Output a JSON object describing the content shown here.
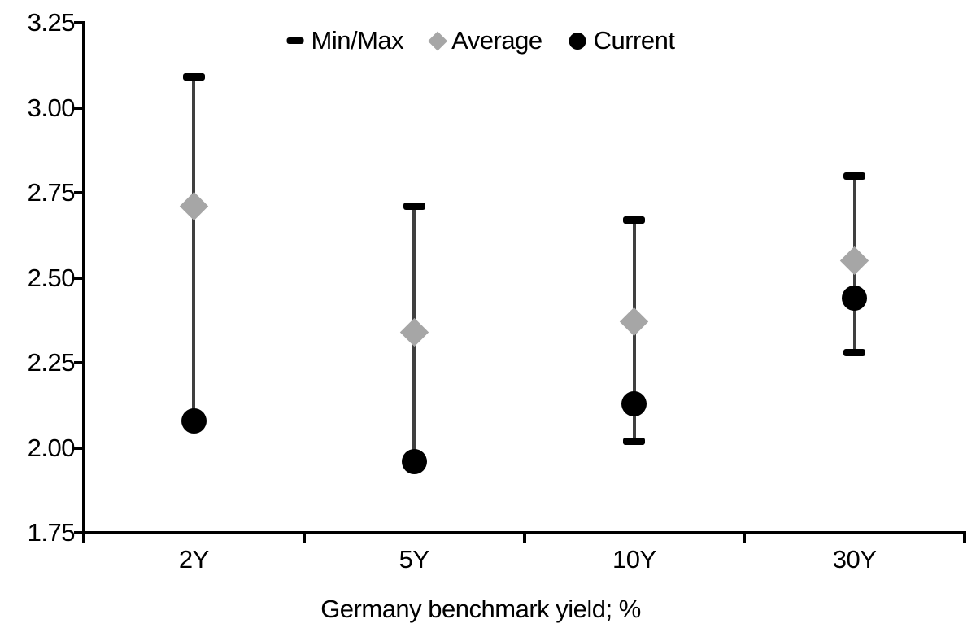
{
  "colors": {
    "axis": "#000000",
    "range_line": "#3f3f3f",
    "cap": "#000000",
    "average_marker": "#a6a6a6",
    "current_marker": "#000000",
    "text": "#000000",
    "background": "#ffffff"
  },
  "legend": {
    "items": [
      {
        "label": "Min/Max",
        "marker": "dash-icon"
      },
      {
        "label": "Average",
        "marker": "diamond-icon"
      },
      {
        "label": "Current",
        "marker": "circle-icon"
      }
    ]
  },
  "chart_data": {
    "type": "scatter",
    "subtype": "min-max-range",
    "title": "",
    "xlabel": "Germany benchmark yield; %",
    "ylabel": "",
    "categories": [
      "2Y",
      "5Y",
      "10Y",
      "30Y"
    ],
    "ylim": [
      1.75,
      3.25
    ],
    "ytick_step": 0.25,
    "ytick_values": [
      3.25,
      3.0,
      2.75,
      2.5,
      2.25,
      2.0,
      1.75
    ],
    "ytick_labels": [
      "3.25",
      "3.00",
      "2.75",
      "2.50",
      "2.25",
      "2.00",
      "1.75"
    ],
    "grid": false,
    "legend_position": "top-center",
    "series": [
      {
        "name": "Min/Max",
        "role": "range",
        "max": [
          3.09,
          2.71,
          2.67,
          2.8
        ],
        "min": [
          2.08,
          1.96,
          2.02,
          2.28
        ],
        "min_cap_visible": [
          false,
          false,
          true,
          true
        ]
      },
      {
        "name": "Average",
        "role": "marker-diamond",
        "values": [
          2.71,
          2.34,
          2.37,
          2.55
        ]
      },
      {
        "name": "Current",
        "role": "marker-circle",
        "values": [
          2.08,
          1.96,
          2.13,
          2.44
        ]
      }
    ]
  }
}
